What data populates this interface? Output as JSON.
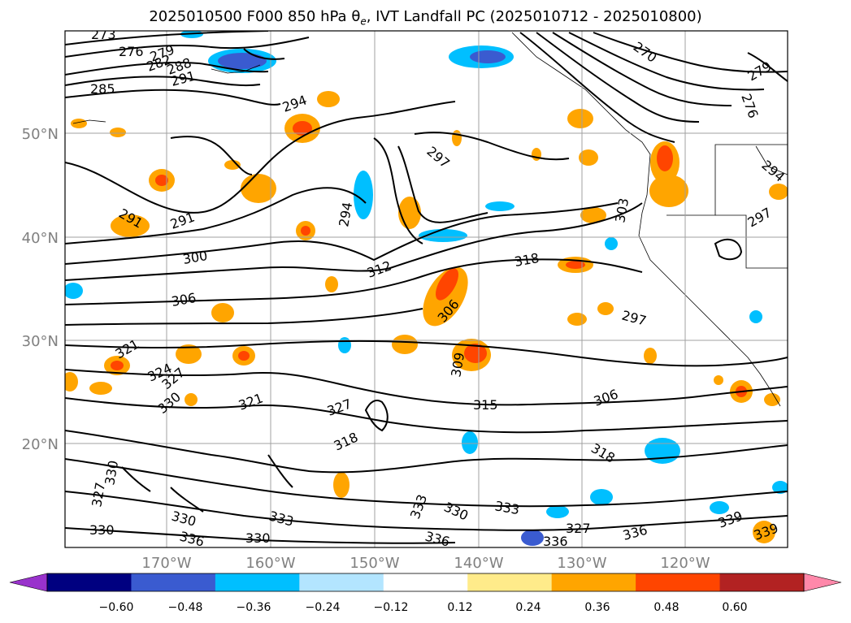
{
  "title": {
    "prefix": "2025010500 F000 850 hPa ",
    "theta": "θ",
    "theta_sub": "e",
    "suffix": ", IVT Landfall PC (2025010712 - 2025010800)"
  },
  "map": {
    "lat_labels": [
      "50°N",
      "40°N",
      "30°N",
      "20°N"
    ],
    "lon_labels": [
      "170°W",
      "160°W",
      "150°W",
      "140°W",
      "130°W",
      "120°W"
    ],
    "contour_labels": [
      "273",
      "276",
      "279",
      "282",
      "288",
      "285",
      "291",
      "294",
      "297",
      "270",
      "279",
      "276",
      "291",
      "291",
      "294",
      "300",
      "306",
      "312",
      "318",
      "306",
      "297",
      "321",
      "324",
      "327",
      "330",
      "321",
      "327",
      "318",
      "315",
      "306",
      "318",
      "330",
      "327",
      "330",
      "333",
      "330",
      "336",
      "330",
      "336",
      "333",
      "330",
      "333",
      "336",
      "327",
      "336",
      "339",
      "339",
      "309",
      "294",
      "297",
      "303"
    ]
  },
  "colorbar": {
    "ticks": [
      "−0.60",
      "−0.48",
      "−0.36",
      "−0.24",
      "−0.12",
      "0.12",
      "0.24",
      "0.36",
      "0.48",
      "0.60"
    ],
    "colors": [
      "#9932cc",
      "#000080",
      "#3a5bd0",
      "#00bfff",
      "#b3e5ff",
      "#ffffff",
      "#ffeb8a",
      "#ffa500",
      "#ff4500",
      "#b22222",
      "#ff88aa"
    ]
  }
}
